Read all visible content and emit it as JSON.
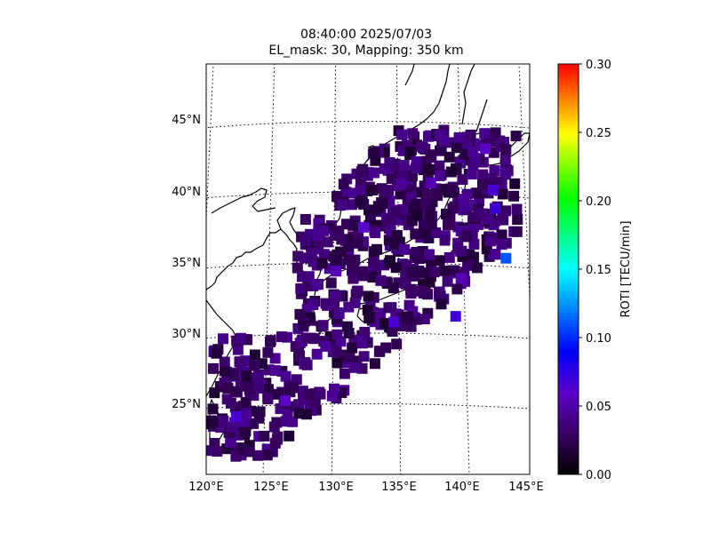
{
  "title": {
    "timestamp": "08:40:00 2025/07/03",
    "subtitle": "EL_mask: 30, Mapping: 350 km"
  },
  "map": {
    "projection": "conic",
    "lon_range": [
      120,
      145
    ],
    "lat_range": [
      20,
      49
    ],
    "gridlines": "dotted",
    "lon_ticks": [
      "120°E",
      "125°E",
      "130°E",
      "135°E",
      "140°E",
      "145°E"
    ],
    "lat_ticks": [
      "25°N",
      "30°N",
      "35°N",
      "40°N",
      "45°N"
    ]
  },
  "colorbar": {
    "label": "ROTI [TECU/min]",
    "min": 0.0,
    "max": 0.3,
    "ticks": [
      "0.00",
      "0.05",
      "0.10",
      "0.15",
      "0.20",
      "0.25",
      "0.30"
    ],
    "colormap": [
      "#000000",
      "#5a0096",
      "#0000ff",
      "#00ffff",
      "#00ff00",
      "#ffff00",
      "#ff0000"
    ]
  },
  "chart_data": {
    "type": "scatter",
    "xlabel": "",
    "ylabel": "",
    "color_label": "ROTI [TECU/min]",
    "x_range": [
      120,
      145
    ],
    "y_range": [
      20,
      49
    ],
    "color_range": [
      0.0,
      0.3
    ],
    "points": [
      {
        "lon": 143.3,
        "lat": 35.6,
        "roti": 0.11
      },
      {
        "lon": 142.6,
        "lat": 39.1,
        "roti": 0.07
      },
      {
        "lon": 142.5,
        "lat": 40.4,
        "roti": 0.065
      },
      {
        "lon": 142.0,
        "lat": 43.3,
        "roti": 0.06
      },
      {
        "lon": 139.3,
        "lat": 31.3,
        "roti": 0.07
      },
      {
        "lon": 134.6,
        "lat": 30.8,
        "roti": 0.065
      },
      {
        "lon": 132.3,
        "lat": 37.5,
        "roti": 0.06
      },
      {
        "lon": 122.9,
        "lat": 24.3,
        "roti": 0.065
      },
      {
        "lon": 126.5,
        "lat": 25.3,
        "roti": 0.06
      },
      {
        "lon": 137.6,
        "lat": 40.7,
        "roti": 0.055
      },
      {
        "lon": 130.2,
        "lat": 34.4,
        "roti": 0.055
      },
      {
        "lon": 139.8,
        "lat": 34.0,
        "roti": 0.055
      }
    ],
    "background_points": {
      "count": 720,
      "roti_range": [
        0.015,
        0.045
      ]
    }
  }
}
